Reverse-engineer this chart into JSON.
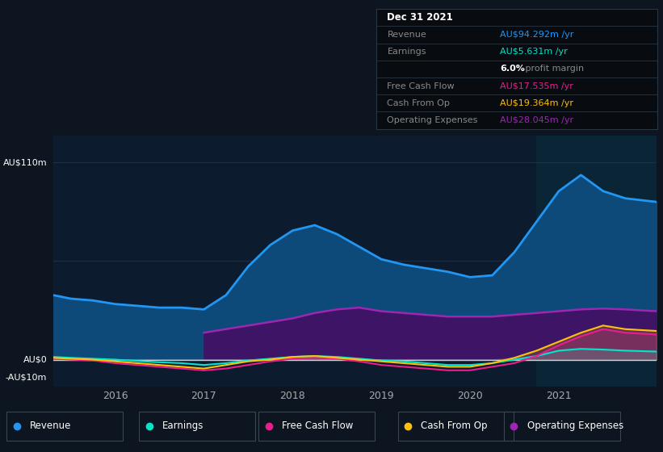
{
  "bg_color": "#0d1520",
  "chart_bg": "#0d1b2e",
  "highlight_bg": "#0a2535",
  "table_bg": "#080c10",
  "legend_bg": "#111820",
  "title_date": "Dec 31 2021",
  "ylim": [
    -15,
    125
  ],
  "xlim": [
    2015.3,
    2022.1
  ],
  "xlabel_years": [
    2016,
    2017,
    2018,
    2019,
    2020,
    2021
  ],
  "legend": [
    {
      "label": "Revenue",
      "color": "#2196f3"
    },
    {
      "label": "Earnings",
      "color": "#00e5cc"
    },
    {
      "label": "Free Cash Flow",
      "color": "#e91e8c"
    },
    {
      "label": "Cash From Op",
      "color": "#ffc107"
    },
    {
      "label": "Operating Expenses",
      "color": "#9c27b0"
    }
  ],
  "revenue_color": "#2196f3",
  "earnings_color": "#00e5cc",
  "fcf_color": "#e91e8c",
  "cfo_color": "#ffc107",
  "opex_color": "#9c27b0",
  "revenue_fill": "#0d4a7a",
  "opex_fill": "#3d1466",
  "x": [
    2015.3,
    2015.5,
    2015.75,
    2016.0,
    2016.25,
    2016.5,
    2016.75,
    2017.0,
    2017.25,
    2017.5,
    2017.75,
    2018.0,
    2018.25,
    2018.5,
    2018.75,
    2019.0,
    2019.25,
    2019.5,
    2019.75,
    2020.0,
    2020.25,
    2020.5,
    2020.75,
    2021.0,
    2021.25,
    2021.5,
    2021.75,
    2022.1
  ],
  "revenue": [
    36,
    34,
    33,
    31,
    30,
    29,
    29,
    28,
    36,
    52,
    64,
    72,
    75,
    70,
    63,
    56,
    53,
    51,
    49,
    46,
    47,
    60,
    77,
    94,
    103,
    94,
    90,
    88
  ],
  "earnings": [
    1.5,
    1,
    0.5,
    0,
    -0.8,
    -1.5,
    -2,
    -3,
    -2,
    -0.5,
    0.5,
    1.5,
    2,
    1.5,
    0.5,
    -0.5,
    -1,
    -2,
    -3,
    -3,
    -2,
    0,
    2,
    5,
    6,
    5.6,
    5,
    4.5
  ],
  "free_cash_flow": [
    0.5,
    0,
    -0.5,
    -2,
    -3,
    -4,
    -5,
    -6,
    -5,
    -3,
    -1,
    0.5,
    1,
    0.5,
    -1,
    -3,
    -4,
    -5,
    -6,
    -6,
    -4,
    -2,
    2,
    8,
    13,
    17,
    15,
    14
  ],
  "cash_from_op": [
    1,
    0.5,
    0,
    -1,
    -2,
    -3,
    -4,
    -5,
    -3,
    -1,
    0,
    1.5,
    2,
    1,
    0,
    -1,
    -2,
    -3,
    -4,
    -4,
    -2,
    1,
    5,
    10,
    15,
    19,
    17,
    16
  ],
  "opex_x": [
    2017.0,
    2017.25,
    2017.5,
    2017.75,
    2018.0,
    2018.25,
    2018.5,
    2018.75,
    2019.0,
    2019.25,
    2019.5,
    2019.75,
    2020.0,
    2020.25,
    2020.5,
    2020.75,
    2021.0,
    2021.25,
    2021.5,
    2021.75,
    2022.1
  ],
  "operating_expenses": [
    15,
    17,
    19,
    21,
    23,
    26,
    28,
    29,
    27,
    26,
    25,
    24,
    24,
    24,
    25,
    26,
    27,
    28,
    28.5,
    28,
    27
  ]
}
